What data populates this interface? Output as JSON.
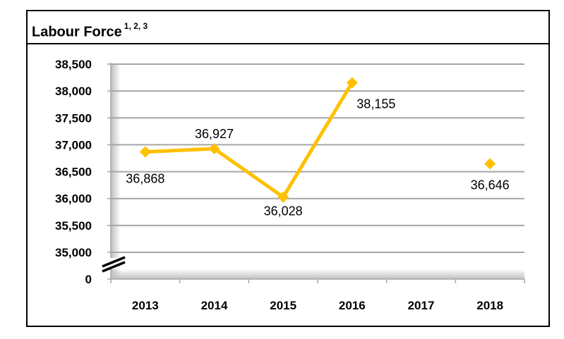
{
  "chart_data": {
    "type": "line",
    "title": "Labour Force",
    "title_superscript": "1, 2, 3",
    "categories": [
      "2013",
      "2014",
      "2015",
      "2016",
      "2017",
      "2018"
    ],
    "series": [
      {
        "values": [
          36868,
          36927,
          36028,
          38155,
          null,
          36646
        ]
      }
    ],
    "data_labels": [
      "36,868",
      "36,927",
      "36,028",
      "38,155",
      "",
      "36,646"
    ],
    "y_tick_labels": [
      "38,500",
      "38,000",
      "37,500",
      "37,000",
      "36,500",
      "36,000",
      "35,500",
      "35,000",
      "0"
    ],
    "y_tick_values": [
      38500,
      38000,
      37500,
      37000,
      36500,
      36000,
      35500,
      35000,
      0
    ],
    "ylim": [
      35000,
      38500
    ],
    "axis_break": true,
    "grid": true,
    "line_color": "#FFC000",
    "grid_color": "#A6A6A6",
    "plot_shade_color": "#D9D9D9"
  }
}
